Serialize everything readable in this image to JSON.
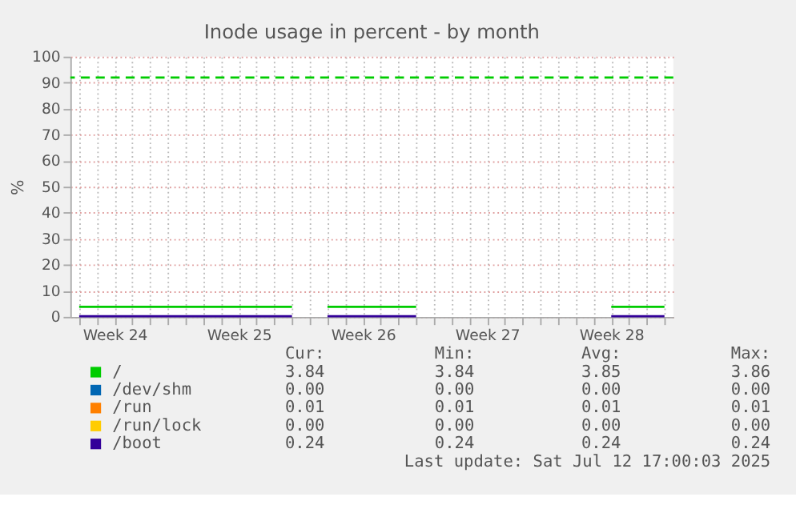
{
  "chart_data": {
    "type": "line",
    "title": "Inode usage in percent - by month",
    "ylabel": "%",
    "categories": [
      null,
      null,
      "Week 24",
      null,
      null,
      null,
      null,
      null,
      null,
      "Week 25",
      null,
      null,
      null,
      null,
      null,
      null,
      "Week 26",
      null,
      null,
      null,
      null,
      null,
      null,
      "Week 27",
      null,
      null,
      null,
      null,
      null,
      null,
      "Week 28",
      null,
      null,
      null
    ],
    "ylim": [
      0,
      100
    ],
    "yticks": [
      0,
      10,
      20,
      30,
      40,
      50,
      60,
      70,
      80,
      90,
      100
    ],
    "grid": true,
    "legend": "bottom",
    "line_style": "solid",
    "marker": "none",
    "series": [
      {
        "name": "/",
        "color": "#00cc00",
        "values": [
          3.84,
          3.84,
          3.84,
          3.84,
          3.84,
          3.84,
          3.84,
          3.84,
          3.84,
          3.84,
          3.84,
          3.84,
          3.84,
          null,
          3.84,
          3.84,
          3.84,
          3.84,
          3.84,
          3.84,
          null,
          null,
          null,
          null,
          null,
          null,
          null,
          null,
          null,
          null,
          3.84,
          3.84,
          3.84,
          3.84
        ]
      },
      {
        "name": "/dev/shm",
        "color": "#0066b3",
        "values": [
          null,
          null,
          null,
          null,
          null,
          null,
          null,
          null,
          null,
          null,
          null,
          null,
          null,
          null,
          null,
          null,
          null,
          null,
          null,
          null,
          null,
          null,
          null,
          null,
          null,
          null,
          null,
          null,
          null,
          null,
          null,
          null,
          null,
          null
        ]
      },
      {
        "name": "/run",
        "color": "#ff8000",
        "values": [
          null,
          null,
          null,
          null,
          null,
          null,
          null,
          null,
          null,
          null,
          null,
          null,
          null,
          null,
          null,
          null,
          null,
          null,
          null,
          null,
          null,
          null,
          null,
          null,
          null,
          null,
          null,
          null,
          null,
          null,
          null,
          null,
          null,
          null
        ]
      },
      {
        "name": "/run/lock",
        "color": "#ffcc00",
        "values": [
          null,
          null,
          null,
          null,
          null,
          null,
          null,
          null,
          null,
          null,
          null,
          null,
          null,
          null,
          null,
          null,
          null,
          null,
          null,
          null,
          null,
          null,
          null,
          null,
          null,
          null,
          null,
          null,
          null,
          null,
          null,
          null,
          null,
          null
        ]
      },
      {
        "name": "/boot",
        "color": "#330099",
        "values": [
          0.24,
          0.24,
          0.24,
          0.24,
          0.24,
          0.24,
          0.24,
          0.24,
          0.24,
          0.24,
          0.24,
          0.24,
          0.24,
          null,
          0.24,
          0.24,
          0.24,
          0.24,
          0.24,
          0.24,
          null,
          null,
          null,
          null,
          null,
          null,
          null,
          null,
          null,
          null,
          0.24,
          0.24,
          0.24,
          0.24
        ]
      }
    ],
    "ref_lines": [
      {
        "axis": "y",
        "value": 92,
        "label": null,
        "color": "#00cc00",
        "line_style": "dashed"
      }
    ],
    "annotations": [
      "Cur:",
      "Min:",
      "Avg:",
      "Max:",
      "3.84",
      "3.84",
      "3.85",
      "3.86",
      "0.00",
      "0.00",
      "0.00",
      "0.00",
      "0.01",
      "0.01",
      "0.01",
      "0.01",
      "0.00",
      "0.00",
      "0.00",
      "0.00",
      "0.24",
      "0.24",
      "0.24",
      "0.24",
      "Last update: Sat Jul 12 17:00:03 2025"
    ]
  }
}
